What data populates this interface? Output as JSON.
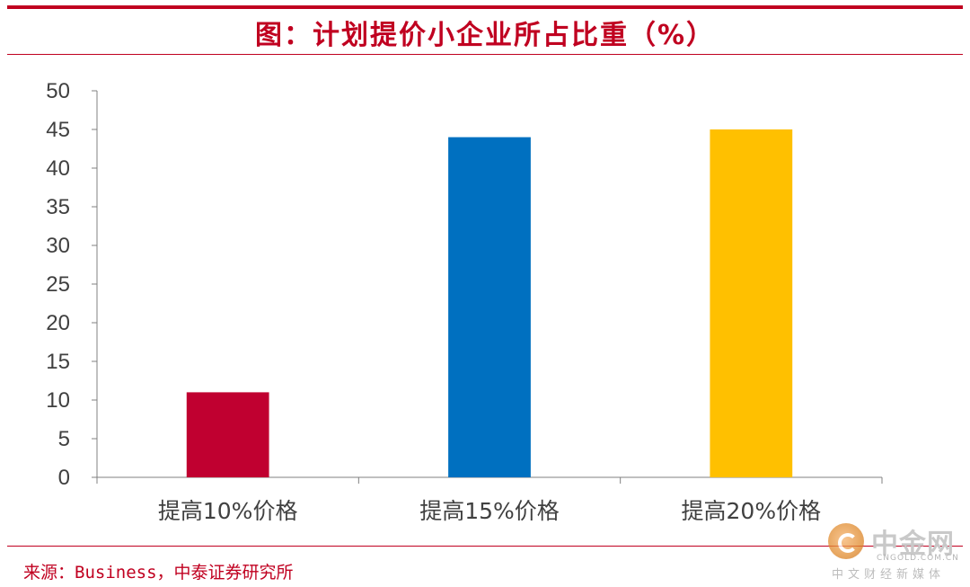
{
  "title": "图：计划提价小企业所占比重（%）",
  "source": "来源：Business，中泰证券研究所",
  "watermark": {
    "name": "中金网",
    "url": "CNGOLD.COM.CN",
    "tagline": "中文财经新媒体"
  },
  "chart_data": {
    "type": "bar",
    "categories": [
      "提高10%价格",
      "提高15%价格",
      "提高20%价格"
    ],
    "values": [
      11,
      44,
      45
    ],
    "colors": [
      "#c00030",
      "#0070c0",
      "#ffc000"
    ],
    "xlabel": "",
    "ylabel": "",
    "ylim": [
      0,
      50
    ],
    "yticks": [
      0,
      5,
      10,
      15,
      20,
      25,
      30,
      35,
      40,
      45,
      50
    ],
    "grid": false,
    "legend": "none"
  }
}
